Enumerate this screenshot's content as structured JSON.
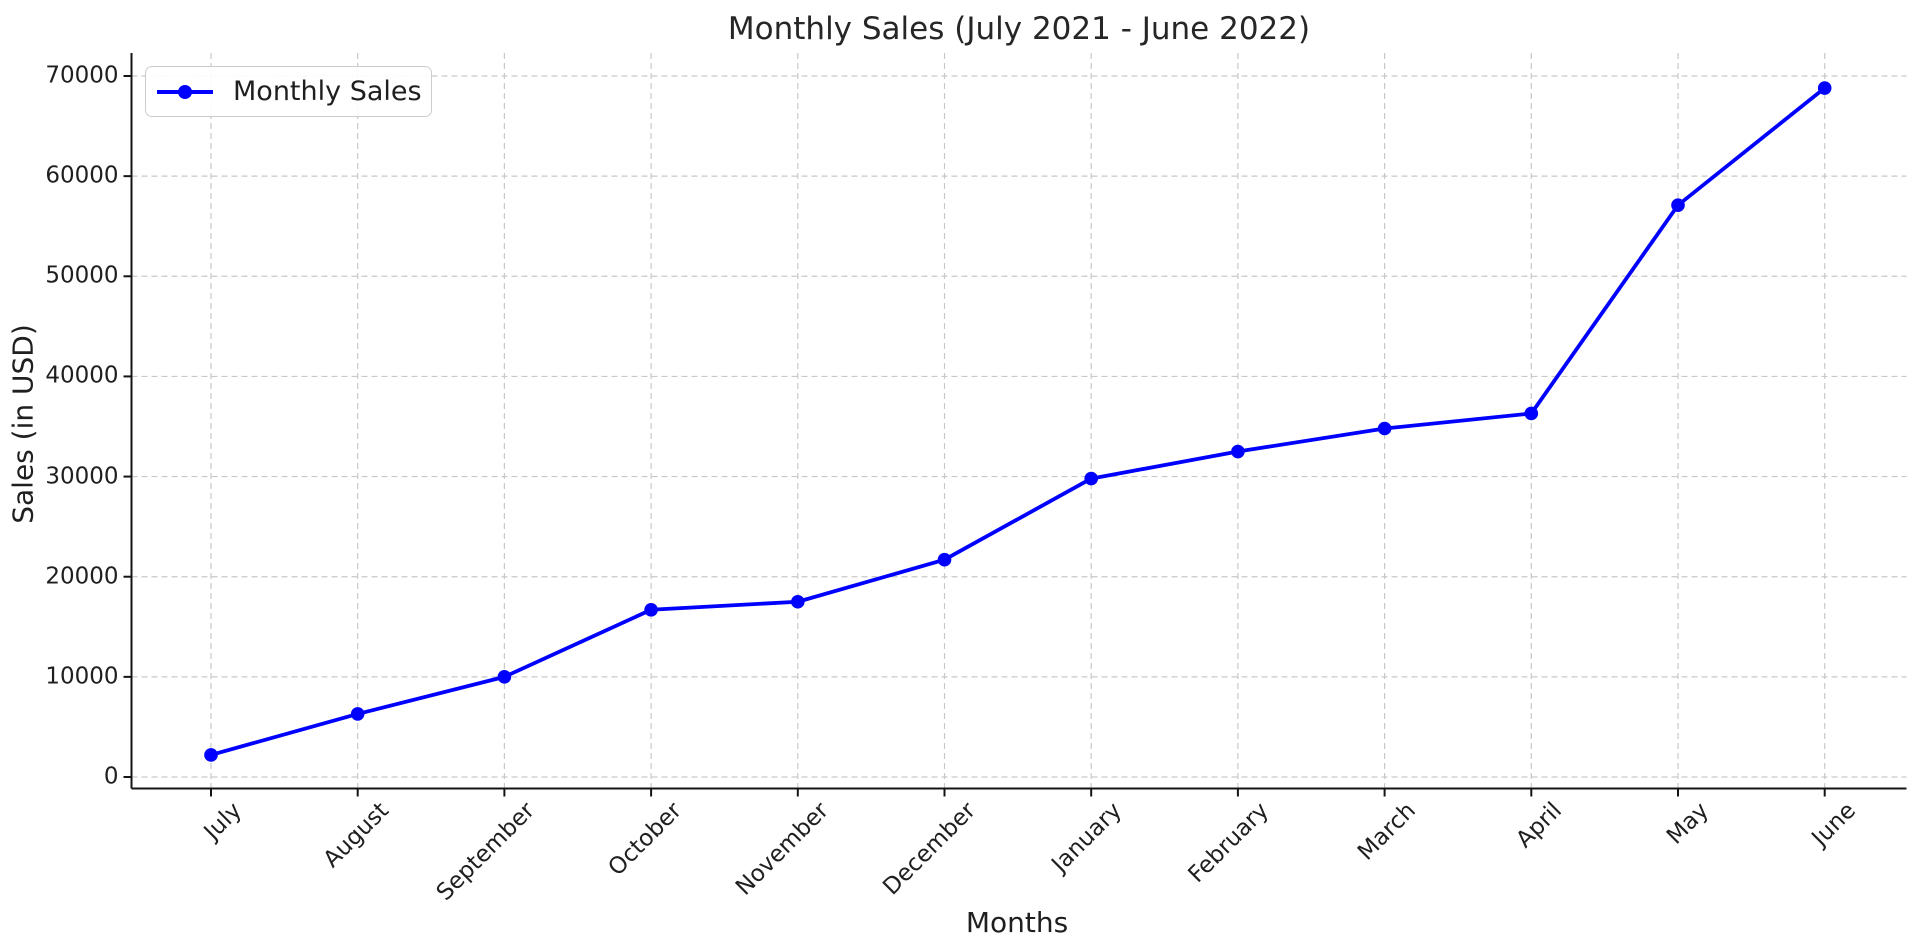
{
  "page": {
    "background": "#ffffff"
  },
  "chart_data": {
    "type": "line",
    "title": "Monthly Sales (July 2021 - June 2022)",
    "xlabel": "Months",
    "ylabel": "Sales (in USD)",
    "categories": [
      "July",
      "August",
      "September",
      "October",
      "November",
      "December",
      "January",
      "February",
      "March",
      "April",
      "May",
      "June"
    ],
    "series": [
      {
        "name": "Monthly Sales",
        "values": [
          2200,
          6300,
          10000,
          16700,
          17500,
          21700,
          29800,
          32500,
          34800,
          36300,
          57100,
          68800
        ],
        "color": "#0000ff",
        "marker": "circle",
        "line_style": "solid"
      }
    ],
    "y_ticks": [
      0,
      10000,
      20000,
      30000,
      40000,
      50000,
      60000,
      70000
    ],
    "ylim": [
      0,
      70000
    ],
    "x_tick_rotation_deg": 45,
    "grid": true,
    "grid_style": "dashed",
    "legend_position": "upper-left",
    "legend_entries": [
      "Monthly Sales"
    ],
    "colors": {
      "line": "#0000ff",
      "grid": "#c9c9c9",
      "spine": "#141414",
      "text": "#1f1f1f",
      "legend_border": "#cccccc"
    }
  }
}
